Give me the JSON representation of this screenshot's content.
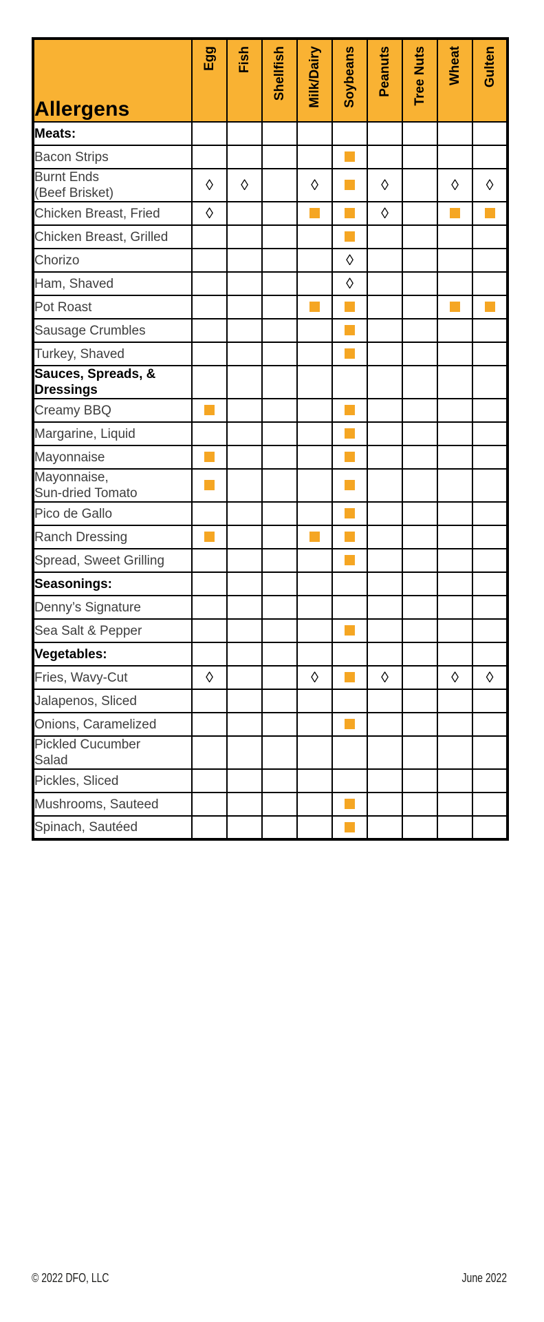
{
  "header": {
    "title": "Allergens",
    "columns": [
      "Egg",
      "Fish",
      "Shellfish",
      "Milk/Dairy",
      "Soybeans",
      "Peanuts",
      "Tree Nuts",
      "Wheat",
      "Gulten"
    ]
  },
  "symbols": {
    "diamond_glyph": "◊"
  },
  "colors": {
    "header_bg": "#F9B233",
    "marker_square": "#F5A623",
    "grid_line": "#000000"
  },
  "table": {
    "rows": [
      {
        "type": "section",
        "label": "Meats:",
        "marks": [
          "",
          "",
          "",
          "",
          "",
          "",
          "",
          "",
          ""
        ]
      },
      {
        "type": "item",
        "label": "Bacon Strips",
        "marks": [
          "",
          "",
          "",
          "",
          "square",
          "",
          "",
          "",
          ""
        ]
      },
      {
        "type": "item",
        "label": "Burnt Ends\n(Beef Brisket)",
        "marks": [
          "diamond",
          "diamond",
          "",
          "diamond",
          "square",
          "diamond",
          "",
          "diamond",
          "diamond"
        ]
      },
      {
        "type": "item",
        "label": "Chicken Breast, Fried",
        "marks": [
          "diamond",
          "",
          "",
          "square",
          "square",
          "diamond",
          "",
          "square",
          "square"
        ]
      },
      {
        "type": "item",
        "label": "Chicken Breast, Grilled",
        "marks": [
          "",
          "",
          "",
          "",
          "square",
          "",
          "",
          "",
          ""
        ]
      },
      {
        "type": "item",
        "label": "Chorizo",
        "marks": [
          "",
          "",
          "",
          "",
          "diamond",
          "",
          "",
          "",
          ""
        ]
      },
      {
        "type": "item",
        "label": "Ham, Shaved",
        "marks": [
          "",
          "",
          "",
          "",
          "diamond",
          "",
          "",
          "",
          ""
        ]
      },
      {
        "type": "item",
        "label": "Pot Roast",
        "marks": [
          "",
          "",
          "",
          "square",
          "square",
          "",
          "",
          "square",
          "square"
        ]
      },
      {
        "type": "item",
        "label": "Sausage Crumbles",
        "marks": [
          "",
          "",
          "",
          "",
          "square",
          "",
          "",
          "",
          ""
        ]
      },
      {
        "type": "item",
        "label": "Turkey, Shaved",
        "marks": [
          "",
          "",
          "",
          "",
          "square",
          "",
          "",
          "",
          ""
        ]
      },
      {
        "type": "section",
        "label": "Sauces, Spreads, &\nDressings",
        "marks": [
          "",
          "",
          "",
          "",
          "",
          "",
          "",
          "",
          ""
        ]
      },
      {
        "type": "item",
        "label": "Creamy BBQ",
        "marks": [
          "square",
          "",
          "",
          "",
          "square",
          "",
          "",
          "",
          ""
        ]
      },
      {
        "type": "item",
        "label": "Margarine, Liquid",
        "marks": [
          "",
          "",
          "",
          "",
          "square",
          "",
          "",
          "",
          ""
        ]
      },
      {
        "type": "item",
        "label": "Mayonnaise",
        "marks": [
          "square",
          "",
          "",
          "",
          "square",
          "",
          "",
          "",
          ""
        ]
      },
      {
        "type": "item",
        "label": "Mayonnaise,\nSun-dried Tomato",
        "marks": [
          "square",
          "",
          "",
          "",
          "square",
          "",
          "",
          "",
          ""
        ]
      },
      {
        "type": "item",
        "label": "Pico de Gallo",
        "marks": [
          "",
          "",
          "",
          "",
          "square",
          "",
          "",
          "",
          ""
        ]
      },
      {
        "type": "item",
        "label": "Ranch Dressing",
        "marks": [
          "square",
          "",
          "",
          "square",
          "square",
          "",
          "",
          "",
          ""
        ]
      },
      {
        "type": "item",
        "label": "Spread, Sweet Grilling",
        "marks": [
          "",
          "",
          "",
          "",
          "square",
          "",
          "",
          "",
          ""
        ]
      },
      {
        "type": "section",
        "label": "Seasonings:",
        "marks": [
          "",
          "",
          "",
          "",
          "",
          "",
          "",
          "",
          ""
        ]
      },
      {
        "type": "item",
        "label": "Denny’s Signature",
        "marks": [
          "",
          "",
          "",
          "",
          "",
          "",
          "",
          "",
          ""
        ]
      },
      {
        "type": "item",
        "label": "Sea Salt & Pepper",
        "marks": [
          "",
          "",
          "",
          "",
          "square",
          "",
          "",
          "",
          ""
        ]
      },
      {
        "type": "section",
        "label": "Vegetables:",
        "marks": [
          "",
          "",
          "",
          "",
          "",
          "",
          "",
          "",
          ""
        ]
      },
      {
        "type": "item",
        "label": "Fries, Wavy-Cut",
        "marks": [
          "diamond",
          "",
          "",
          "diamond",
          "square",
          "diamond",
          "",
          "diamond",
          "diamond"
        ]
      },
      {
        "type": "item",
        "label": "Jalapenos, Sliced",
        "marks": [
          "",
          "",
          "",
          "",
          "",
          "",
          "",
          "",
          ""
        ]
      },
      {
        "type": "item",
        "label": "Onions, Caramelized",
        "marks": [
          "",
          "",
          "",
          "",
          "square",
          "",
          "",
          "",
          ""
        ]
      },
      {
        "type": "item",
        "label": "Pickled Cucumber\nSalad",
        "marks": [
          "",
          "",
          "",
          "",
          "",
          "",
          "",
          "",
          ""
        ]
      },
      {
        "type": "item",
        "label": "Pickles, Sliced",
        "marks": [
          "",
          "",
          "",
          "",
          "",
          "",
          "",
          "",
          ""
        ]
      },
      {
        "type": "item",
        "label": "Mushrooms, Sauteed",
        "marks": [
          "",
          "",
          "",
          "",
          "square",
          "",
          "",
          "",
          ""
        ]
      },
      {
        "type": "item",
        "label": "Spinach, Sautéed",
        "marks": [
          "",
          "",
          "",
          "",
          "square",
          "",
          "",
          "",
          ""
        ]
      }
    ]
  },
  "footer": {
    "copyright": "© 2022 DFO, LLC",
    "date": "June 2022"
  }
}
